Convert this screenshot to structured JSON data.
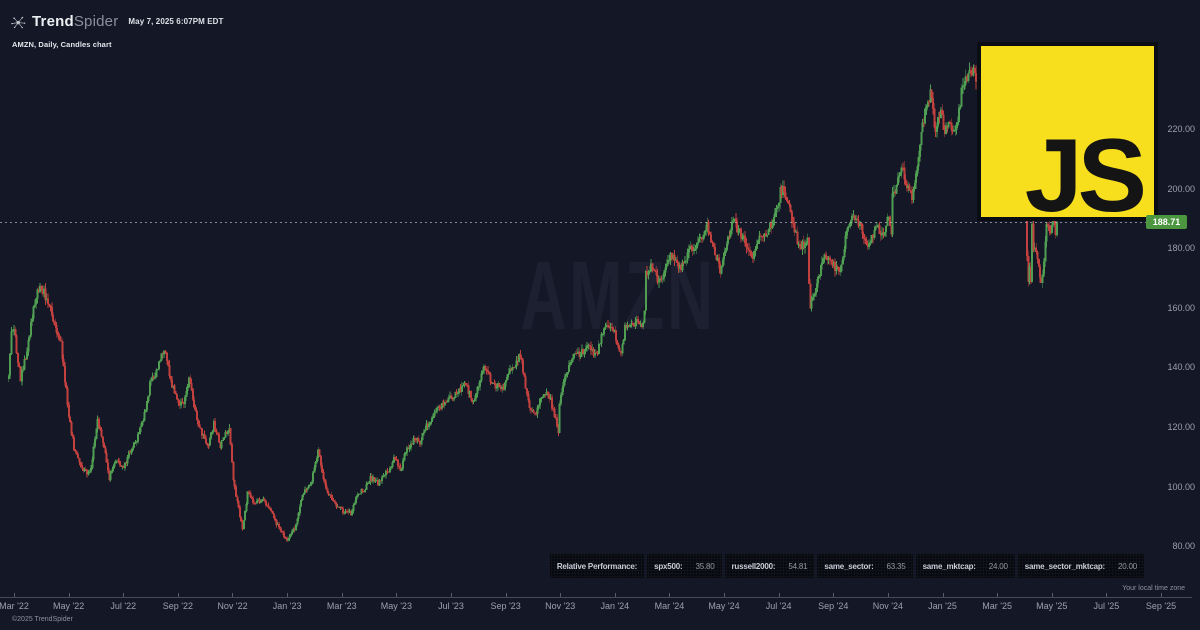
{
  "header": {
    "brand_bold": "Trend",
    "brand_light": "Spider",
    "timestamp": "May 7, 2025 6:07PM EDT",
    "subtitle": "AMZN, Daily, Candles chart"
  },
  "watermark": "AMZN",
  "js_badge": {
    "text": "JS",
    "bg": "#f7df1e",
    "fg": "#141414"
  },
  "last_price": {
    "text": "188.71",
    "value": 188.71,
    "box_color": "#4c9640"
  },
  "perf_bar": {
    "title": "Relative Performance:",
    "items": [
      {
        "label": "spx500:",
        "value": "35.80"
      },
      {
        "label": "russell2000:",
        "value": "54.81"
      },
      {
        "label": "same_sector:",
        "value": "63.35"
      },
      {
        "label": "same_mktcap:",
        "value": "24.00"
      },
      {
        "label": "same_sector_mktcap:",
        "value": "20.00"
      }
    ]
  },
  "footer": {
    "copyright": "©2025 TrendSpider",
    "timezone_note": "Your local time zone"
  },
  "chart_data": {
    "type": "candlestick",
    "symbol": "AMZN",
    "timeframe": "Daily",
    "title": "AMZN, Daily, Candles chart",
    "grid": false,
    "legend": false,
    "ylim": [
      51,
      263
    ],
    "y_ticks": [
      220,
      200,
      180,
      160,
      140,
      120,
      100,
      80
    ],
    "x_ticks": [
      "Mar '22",
      "May '22",
      "Jul '22",
      "Sep '22",
      "Nov '22",
      "Jan '23",
      "Mar '23",
      "May '23",
      "Jul '23",
      "Sep '23",
      "Nov '23",
      "Jan '24",
      "Mar '24",
      "May '24",
      "Jul '24",
      "Sep '24",
      "Nov '24",
      "Jan '25",
      "Mar '25",
      "May '25",
      "Jul '25",
      "Sep '25"
    ],
    "last_close": 188.71,
    "candle_count": 804,
    "colors": {
      "up": "#4f9e52",
      "down": "#c2413f"
    },
    "trend_anchors": [
      [
        0,
        136
      ],
      [
        1,
        144
      ],
      [
        2,
        151
      ],
      [
        4,
        153
      ],
      [
        9,
        136
      ],
      [
        14,
        146
      ],
      [
        19,
        160
      ],
      [
        24,
        168
      ],
      [
        29,
        163
      ],
      [
        35,
        155
      ],
      [
        40,
        148
      ],
      [
        46,
        124
      ],
      [
        50,
        113
      ],
      [
        55,
        107
      ],
      [
        60,
        104
      ],
      [
        63,
        107
      ],
      [
        68,
        122
      ],
      [
        73,
        114
      ],
      [
        77,
        103
      ],
      [
        82,
        109
      ],
      [
        88,
        106
      ],
      [
        93,
        112
      ],
      [
        98,
        116
      ],
      [
        103,
        122
      ],
      [
        108,
        134
      ],
      [
        114,
        140
      ],
      [
        119,
        146
      ],
      [
        125,
        134
      ],
      [
        130,
        128
      ],
      [
        134,
        128
      ],
      [
        138,
        136
      ],
      [
        144,
        123
      ],
      [
        152,
        113
      ],
      [
        157,
        121
      ],
      [
        162,
        114
      ],
      [
        169,
        120
      ],
      [
        172,
        103
      ],
      [
        174,
        97
      ],
      [
        179,
        86
      ],
      [
        183,
        98
      ],
      [
        188,
        94
      ],
      [
        195,
        96
      ],
      [
        200,
        92
      ],
      [
        208,
        85
      ],
      [
        213,
        82
      ],
      [
        219,
        86
      ],
      [
        225,
        97
      ],
      [
        232,
        102
      ],
      [
        237,
        112
      ],
      [
        243,
        99
      ],
      [
        248,
        95
      ],
      [
        255,
        92
      ],
      [
        262,
        91
      ],
      [
        268,
        98
      ],
      [
        273,
        99
      ],
      [
        277,
        103
      ],
      [
        283,
        101
      ],
      [
        292,
        106
      ],
      [
        296,
        110
      ],
      [
        300,
        105
      ],
      [
        304,
        112
      ],
      [
        311,
        116
      ],
      [
        315,
        115
      ],
      [
        319,
        120
      ],
      [
        323,
        122
      ],
      [
        329,
        126
      ],
      [
        335,
        129
      ],
      [
        340,
        130
      ],
      [
        350,
        134
      ],
      [
        356,
        128
      ],
      [
        363,
        140
      ],
      [
        366,
        138
      ],
      [
        373,
        134
      ],
      [
        379,
        133
      ],
      [
        383,
        138
      ],
      [
        392,
        144
      ],
      [
        399,
        126
      ],
      [
        404,
        125
      ],
      [
        410,
        132
      ],
      [
        415,
        129
      ],
      [
        421,
        119
      ],
      [
        422,
        128
      ],
      [
        427,
        138
      ],
      [
        432,
        143
      ],
      [
        438,
        145
      ],
      [
        444,
        147
      ],
      [
        450,
        144
      ],
      [
        456,
        153
      ],
      [
        463,
        153
      ],
      [
        466,
        149
      ],
      [
        469,
        145
      ],
      [
        472,
        153
      ],
      [
        479,
        155
      ],
      [
        486,
        155
      ],
      [
        487,
        159
      ],
      [
        488,
        171
      ],
      [
        493,
        174
      ],
      [
        498,
        169
      ],
      [
        503,
        173
      ],
      [
        508,
        178
      ],
      [
        514,
        173
      ],
      [
        521,
        179
      ],
      [
        526,
        180
      ],
      [
        532,
        185
      ],
      [
        535,
        189
      ],
      [
        540,
        179
      ],
      [
        545,
        173
      ],
      [
        549,
        179
      ],
      [
        553,
        186
      ],
      [
        555,
        189
      ],
      [
        558,
        187
      ],
      [
        565,
        181
      ],
      [
        570,
        177
      ],
      [
        575,
        184
      ],
      [
        580,
        184
      ],
      [
        585,
        189
      ],
      [
        589,
        193
      ],
      [
        591,
        200
      ],
      [
        594,
        199
      ],
      [
        599,
        192
      ],
      [
        605,
        181
      ],
      [
        610,
        181
      ],
      [
        612,
        184
      ],
      [
        613,
        167
      ],
      [
        614,
        161
      ],
      [
        619,
        167
      ],
      [
        624,
        178
      ],
      [
        629,
        175
      ],
      [
        634,
        173
      ],
      [
        637,
        171
      ],
      [
        642,
        186
      ],
      [
        646,
        190
      ],
      [
        652,
        188
      ],
      [
        658,
        181
      ],
      [
        664,
        187
      ],
      [
        670,
        185
      ],
      [
        674,
        191
      ],
      [
        676,
        186
      ],
      [
        677,
        198
      ],
      [
        680,
        201
      ],
      [
        684,
        207
      ],
      [
        687,
        202
      ],
      [
        692,
        197
      ],
      [
        697,
        210
      ],
      [
        699,
        218
      ],
      [
        704,
        230
      ],
      [
        707,
        232
      ],
      [
        709,
        220
      ],
      [
        714,
        225
      ],
      [
        717,
        219
      ],
      [
        720,
        224
      ],
      [
        725,
        218
      ],
      [
        731,
        235
      ],
      [
        735,
        238
      ],
      [
        738,
        237
      ],
      [
        739,
        242
      ],
      [
        743,
        233
      ],
      [
        747,
        229
      ],
      [
        752,
        217
      ],
      [
        754,
        209
      ],
      [
        757,
        205
      ],
      [
        762,
        194
      ],
      [
        766,
        198
      ],
      [
        770,
        196
      ],
      [
        774,
        201
      ],
      [
        777,
        190
      ],
      [
        779,
        196
      ],
      [
        780,
        178
      ],
      [
        781,
        169
      ],
      [
        782,
        174
      ],
      [
        783,
        170
      ],
      [
        784,
        190
      ],
      [
        785,
        181
      ],
      [
        789,
        174
      ],
      [
        791,
        167
      ],
      [
        795,
        187
      ],
      [
        798,
        184
      ],
      [
        799,
        189
      ],
      [
        800,
        190
      ],
      [
        802,
        185
      ],
      [
        803,
        188.71
      ]
    ]
  }
}
